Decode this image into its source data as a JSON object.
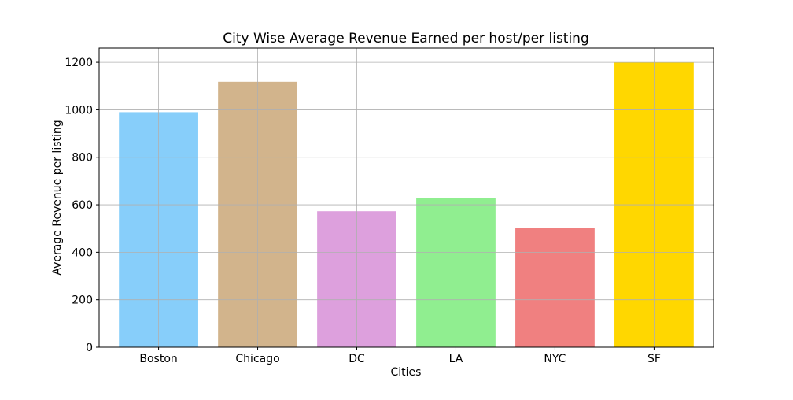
{
  "chart_data": {
    "type": "bar",
    "title": "City Wise Average Revenue Earned per host/per listing",
    "xlabel": "Cities",
    "ylabel": "Average Revenue per listing",
    "categories": [
      "Boston",
      "Chicago",
      "DC",
      "LA",
      "NYC",
      "SF"
    ],
    "values": [
      990,
      1118,
      573,
      630,
      503,
      1200
    ],
    "colors": [
      "#87CEFA",
      "#D2B48C",
      "#DDA0DD",
      "#90EE90",
      "#F08080",
      "#FFD700"
    ],
    "ylim": [
      0,
      1260
    ],
    "yticks": [
      0,
      200,
      400,
      600,
      800,
      1000,
      1200
    ],
    "grid": true,
    "legend": "none"
  }
}
